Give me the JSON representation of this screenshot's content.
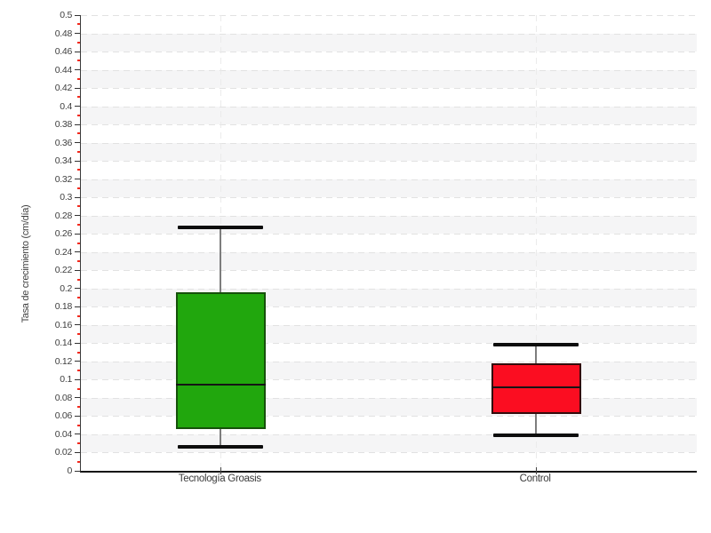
{
  "chart_data": {
    "type": "boxplot",
    "ylabel": "Tasa de crecimiento (cm/día)",
    "xlabel": "",
    "ylim": [
      0,
      0.5
    ],
    "ytick_step": 0.02,
    "ytick_minor_step": 0.01,
    "yticks": [
      "0",
      "0.02",
      "0.04",
      "0.06",
      "0.08",
      "0.1",
      "0.12",
      "0.14",
      "0.16",
      "0.18",
      "0.2",
      "0.22",
      "0.24",
      "0.26",
      "0.28",
      "0.3",
      "0.32",
      "0.34",
      "0.36",
      "0.38",
      "0.4",
      "0.42",
      "0.44",
      "0.46",
      "0.48",
      "0.5"
    ],
    "legend": "none",
    "grid": {
      "horizontal": "dashed every 0.02",
      "vertical": "dashed at each category",
      "background_bands": "alternating white / light gray every 0.02"
    },
    "categories": [
      "Tecnología Groasis",
      "Control"
    ],
    "series": [
      {
        "name": "Tecnología Groasis",
        "min": 0.026,
        "q1": 0.046,
        "median": 0.095,
        "q3": 0.196,
        "max": 0.267,
        "fill": "#21a70d",
        "border": "#16510b"
      },
      {
        "name": "Control",
        "min": 0.039,
        "q1": 0.062,
        "median": 0.092,
        "q3": 0.118,
        "max": 0.138,
        "fill": "#fb0d21",
        "border": "#330c0c"
      }
    ],
    "colors": {
      "band": "#f5f5f6",
      "gridline": "#e2e2e2",
      "whisker_line": "#7d7d7d",
      "whisker_cap": "#0d0d0d",
      "median_line": "#141414",
      "minor_tick": "#f32a1e",
      "axis": "#151515"
    }
  }
}
